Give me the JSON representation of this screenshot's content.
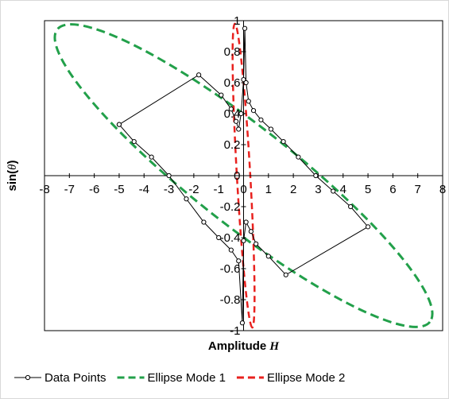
{
  "chart_data": {
    "type": "scatter",
    "xlabel": "Amplitude",
    "xlabel_var": "H",
    "ylabel": "sin(",
    "ylabel_var": "θ",
    "ylabel_close": ")",
    "xlim": [
      -8,
      8
    ],
    "ylim": [
      -1,
      1
    ],
    "xticks": [
      "-8",
      "-7",
      "-6",
      "-5",
      "-4",
      "-3",
      "-2",
      "-1",
      "0",
      "1",
      "2",
      "3",
      "4",
      "5",
      "6",
      "7",
      "8"
    ],
    "yticks": [
      "1",
      "0.8",
      "0.6",
      "0.4",
      "0.2",
      "0",
      "-0.2",
      "-0.4",
      "-0.6",
      "-0.8",
      "-1"
    ],
    "grid": false,
    "legend_position": "bottom",
    "series": [
      {
        "name": "Data Points",
        "color": "#000000",
        "style": "line-markers",
        "x": [
          -5.0,
          -1.8,
          -0.9,
          -0.5,
          -0.3,
          -0.2,
          -0.1,
          0.0,
          0.05,
          0.1,
          0.2,
          0.4,
          0.7,
          1.1,
          1.6,
          2.2,
          2.9,
          3.6,
          4.3,
          5.0,
          1.7,
          1.0,
          0.5,
          0.3,
          0.1,
          0.0,
          -0.05,
          -0.2,
          -0.5,
          -1.0,
          -1.6,
          -2.3,
          -3.0,
          -3.7,
          -4.4,
          -5.0
        ],
        "y": [
          0.33,
          0.65,
          0.52,
          0.43,
          0.35,
          0.3,
          0.4,
          0.62,
          0.95,
          0.6,
          0.48,
          0.42,
          0.36,
          0.3,
          0.22,
          0.12,
          0.0,
          -0.1,
          -0.2,
          -0.33,
          -0.64,
          -0.52,
          -0.44,
          -0.36,
          -0.3,
          -0.42,
          -0.95,
          -0.55,
          -0.48,
          -0.4,
          -0.3,
          -0.15,
          0.0,
          0.12,
          0.22,
          0.33
        ]
      },
      {
        "name": "Ellipse Mode 1",
        "color": "#22a04a",
        "style": "dashed",
        "center": [
          0,
          0
        ],
        "corner_top_left": [
          -7.3,
          0.92
        ],
        "corner_bottom_right": [
          7.3,
          -0.92
        ],
        "extent_x": 7.6,
        "extent_y": 1.0
      },
      {
        "name": "Ellipse Mode 2",
        "color": "#e8211e",
        "style": "dashed",
        "center": [
          0,
          0
        ],
        "left_x": -0.35,
        "right_x": 0.35,
        "top": [
          -0.3,
          0.98
        ],
        "bottom": [
          0.4,
          -0.98
        ]
      }
    ]
  }
}
